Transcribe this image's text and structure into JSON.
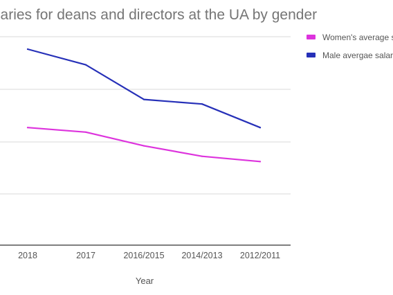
{
  "chart_data": {
    "type": "line",
    "title": "Average salaries for deans and directors at the UA by gender",
    "xlabel": "Year",
    "ylabel": "",
    "categories": [
      "2018",
      "2017",
      "2016/2015",
      "2014/2013",
      "2012/2011"
    ],
    "ylim": [
      0,
      300000
    ],
    "grid": true,
    "legend_position": "right",
    "series": [
      {
        "name": "Women's average salary",
        "color": "#dd33dd",
        "values": [
          180000,
          173000,
          152000,
          136000,
          128000
        ]
      },
      {
        "name": "Male avergae salary",
        "color": "#2630b8",
        "values": [
          300000,
          276000,
          223000,
          216000,
          180000
        ]
      }
    ]
  }
}
